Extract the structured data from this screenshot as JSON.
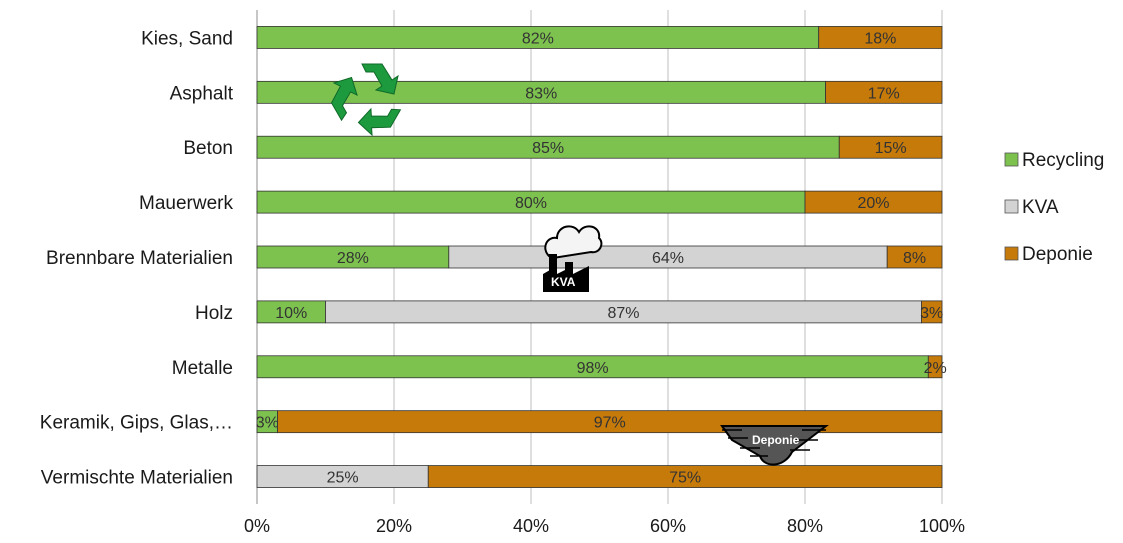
{
  "chart_data": {
    "type": "bar",
    "orientation": "horizontal",
    "stacked": "percent",
    "categories": [
      "Kies, Sand",
      "Asphalt",
      "Beton",
      "Mauerwerk",
      "Brennbare Materialien",
      "Holz",
      "Metalle",
      "Keramik, Gips, Glas,…",
      "Vermischte Materialien"
    ],
    "series": [
      {
        "name": "Recycling",
        "color": "#7dc24f",
        "values": [
          82,
          83,
          85,
          80,
          28,
          10,
          98,
          3,
          0
        ],
        "labels": [
          "82%",
          "83%",
          "85%",
          "80%",
          "28%",
          "10%",
          "98%",
          "3%",
          ""
        ]
      },
      {
        "name": "KVA",
        "color": "#d3d3d3",
        "values": [
          0,
          0,
          0,
          0,
          64,
          87,
          0,
          0,
          25
        ],
        "labels": [
          "",
          "",
          "",
          "",
          "64%",
          "87%",
          "",
          "",
          "25%"
        ]
      },
      {
        "name": "Deponie",
        "color": "#c67a0a",
        "values": [
          18,
          17,
          15,
          20,
          8,
          3,
          2,
          97,
          75
        ],
        "labels": [
          "18%",
          "17%",
          "15%",
          "20%",
          "8%",
          "3%",
          "2%",
          "97%",
          "75%"
        ]
      }
    ],
    "xlim": [
      0,
      100
    ],
    "x_ticks": [
      "0%",
      "20%",
      "40%",
      "60%",
      "80%",
      "100%"
    ],
    "grid": true,
    "legend_position": "right",
    "annotations": {
      "recycling_icon": "recycling-symbol-icon",
      "kva_icon_text": "KVA",
      "deponie_icon_text": "Deponie"
    }
  }
}
